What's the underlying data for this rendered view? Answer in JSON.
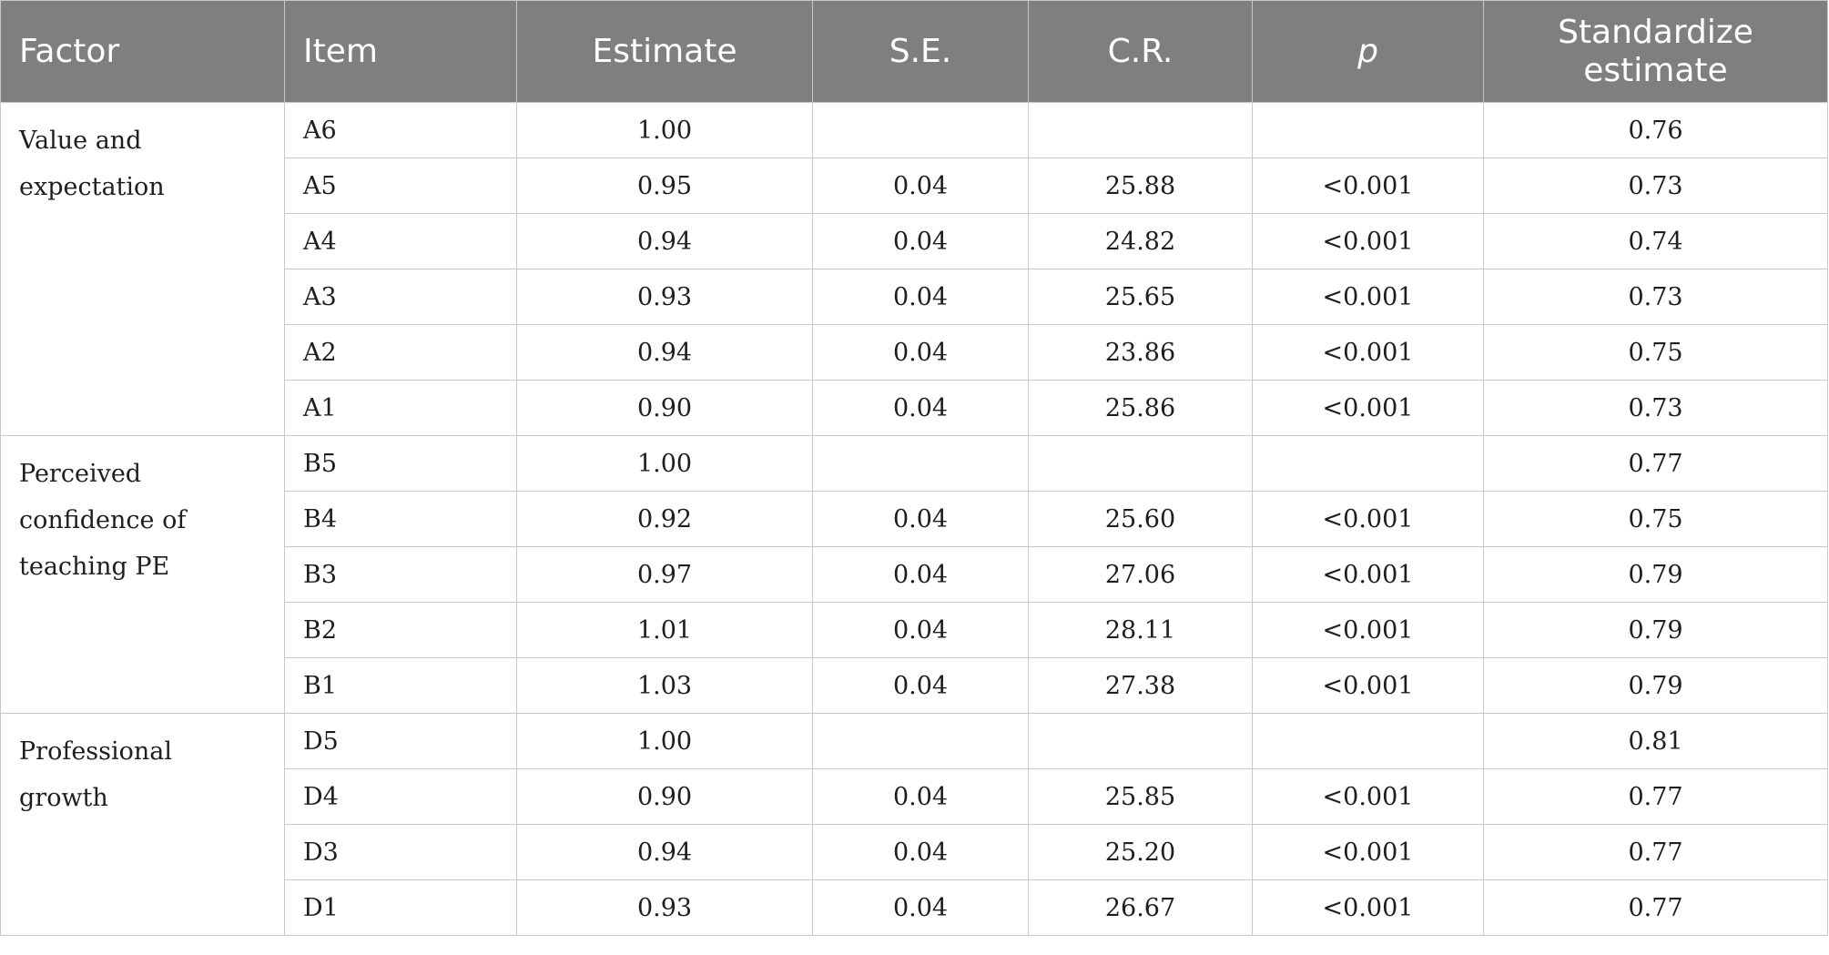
{
  "table": {
    "headers": {
      "factor": "Factor",
      "item": "Item",
      "estimate": "Estimate",
      "se": "S.E.",
      "cr": "C.R.",
      "p": "p",
      "std_line1": "Standardize",
      "std_line2": "estimate"
    },
    "groups": [
      {
        "factor": "Value and expectation",
        "rows": [
          {
            "item": "A6",
            "estimate": "1.00",
            "se": "",
            "cr": "",
            "p": "",
            "std": "0.76"
          },
          {
            "item": "A5",
            "estimate": "0.95",
            "se": "0.04",
            "cr": "25.88",
            "p": "<0.001",
            "std": "0.73"
          },
          {
            "item": "A4",
            "estimate": "0.94",
            "se": "0.04",
            "cr": "24.82",
            "p": "<0.001",
            "std": "0.74"
          },
          {
            "item": "A3",
            "estimate": "0.93",
            "se": "0.04",
            "cr": "25.65",
            "p": "<0.001",
            "std": "0.73"
          },
          {
            "item": "A2",
            "estimate": "0.94",
            "se": "0.04",
            "cr": "23.86",
            "p": "<0.001",
            "std": "0.75"
          },
          {
            "item": "A1",
            "estimate": "0.90",
            "se": "0.04",
            "cr": "25.86",
            "p": "<0.001",
            "std": "0.73"
          }
        ]
      },
      {
        "factor": "Perceived confidence of teaching PE",
        "rows": [
          {
            "item": "B5",
            "estimate": "1.00",
            "se": "",
            "cr": "",
            "p": "",
            "std": "0.77"
          },
          {
            "item": "B4",
            "estimate": "0.92",
            "se": "0.04",
            "cr": "25.60",
            "p": "<0.001",
            "std": "0.75"
          },
          {
            "item": "B3",
            "estimate": "0.97",
            "se": "0.04",
            "cr": "27.06",
            "p": "<0.001",
            "std": "0.79"
          },
          {
            "item": "B2",
            "estimate": "1.01",
            "se": "0.04",
            "cr": "28.11",
            "p": "<0.001",
            "std": "0.79"
          },
          {
            "item": "B1",
            "estimate": "1.03",
            "se": "0.04",
            "cr": "27.38",
            "p": "<0.001",
            "std": "0.79"
          }
        ]
      },
      {
        "factor": "Professional growth",
        "rows": [
          {
            "item": "D5",
            "estimate": "1.00",
            "se": "",
            "cr": "",
            "p": "",
            "std": "0.81"
          },
          {
            "item": "D4",
            "estimate": "0.90",
            "se": "0.04",
            "cr": "25.85",
            "p": "<0.001",
            "std": "0.77"
          },
          {
            "item": "D3",
            "estimate": "0.94",
            "se": "0.04",
            "cr": "25.20",
            "p": "<0.001",
            "std": "0.77"
          },
          {
            "item": "D1",
            "estimate": "0.93",
            "se": "0.04",
            "cr": "26.67",
            "p": "<0.001",
            "std": "0.77"
          }
        ]
      }
    ]
  }
}
